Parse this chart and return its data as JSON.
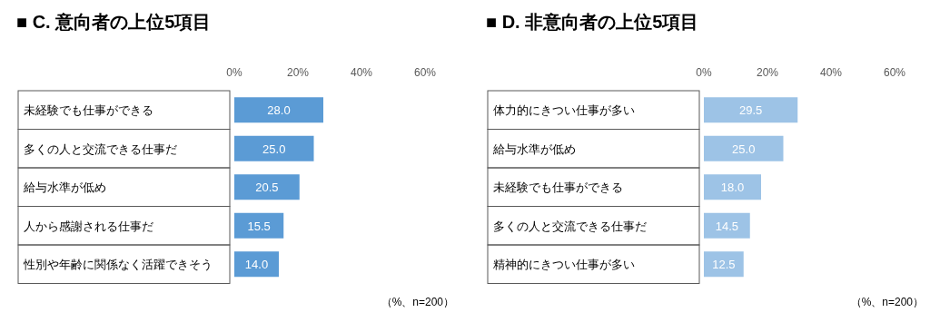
{
  "chart_data": [
    {
      "type": "bar",
      "orientation": "horizontal",
      "title": "■ C. 意向者の上位5項目",
      "categories": [
        "未経験でも仕事ができる",
        "多くの人と交流できる仕事だ",
        "給与水準が低め",
        "人から感謝される仕事だ",
        "性別や年齢に関係なく活躍できそう"
      ],
      "values": [
        28.0,
        25.0,
        20.5,
        15.5,
        14.0
      ],
      "value_labels": [
        "28.0",
        "25.0",
        "20.5",
        "15.5",
        "14.0"
      ],
      "color": "#5b9bd5",
      "xlim": [
        0,
        60
      ],
      "xticks": [
        {
          "value": 0,
          "label": "0%"
        },
        {
          "value": 20,
          "label": "20%"
        },
        {
          "value": 40,
          "label": "40%"
        },
        {
          "value": 60,
          "label": "60%"
        }
      ],
      "annotations": [
        "（%、n=200）"
      ]
    },
    {
      "type": "bar",
      "orientation": "horizontal",
      "title": "■ D. 非意向者の上位5項目",
      "categories": [
        "体力的にきつい仕事が多い",
        "給与水準が低め",
        "未経験でも仕事ができる",
        "多くの人と交流できる仕事だ",
        "精神的にきつい仕事が多い"
      ],
      "values": [
        29.5,
        25.0,
        18.0,
        14.5,
        12.5
      ],
      "value_labels": [
        "29.5",
        "25.0",
        "18.0",
        "14.5",
        "12.5"
      ],
      "color": "#9dc3e6",
      "xlim": [
        0,
        60
      ],
      "xticks": [
        {
          "value": 0,
          "label": "0%"
        },
        {
          "value": 20,
          "label": "20%"
        },
        {
          "value": 40,
          "label": "40%"
        },
        {
          "value": 60,
          "label": "60%"
        }
      ],
      "annotations": [
        "（%、n=200）"
      ]
    }
  ]
}
